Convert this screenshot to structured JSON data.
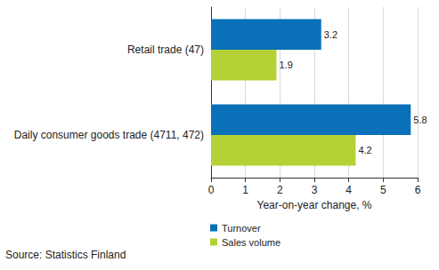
{
  "chart_data": {
    "type": "bar",
    "orientation": "horizontal",
    "categories": [
      "Retail trade (47)",
      "Daily consumer goods trade (4711, 472)"
    ],
    "series": [
      {
        "name": "Turnover",
        "color": "#0a70b7",
        "values": [
          3.2,
          5.8
        ]
      },
      {
        "name": "Sales volume",
        "color": "#b4d235",
        "values": [
          1.9,
          4.2
        ]
      }
    ],
    "xlabel": "Year-on-year change, %",
    "xlim": [
      0,
      6
    ],
    "xticks": [
      0,
      1,
      2,
      3,
      4,
      5,
      6
    ],
    "grid": true,
    "data_labels": true,
    "legend": "lower left",
    "annotations": [
      "Source: Statistics Finland"
    ]
  }
}
